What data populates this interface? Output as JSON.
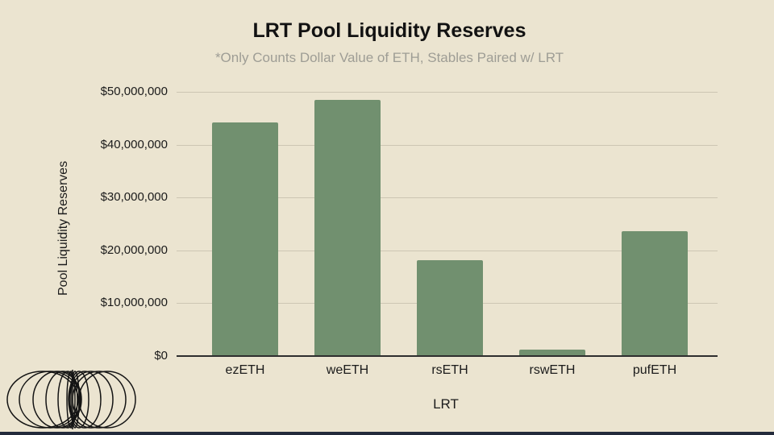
{
  "page": {
    "background_color": "#ebe4d0",
    "footer_bar_color": "#232a3b"
  },
  "chart_data": {
    "type": "bar",
    "title": "LRT Pool Liquidity Reserves",
    "subtitle": "*Only Counts Dollar Value of ETH, Stables Paired w/ LRT",
    "xlabel": "LRT",
    "ylabel": "Pool Liquidity Reserves",
    "categories": [
      "ezETH",
      "weETH",
      "rsETH",
      "rswETH",
      "pufETH"
    ],
    "values": [
      44200000,
      48500000,
      18200000,
      1200000,
      23600000
    ],
    "ylim": [
      0,
      50000000
    ],
    "ytick_interval": 10000000,
    "ytick_labels": [
      "$0",
      "$10,000,000",
      "$20,000,000",
      "$30,000,000",
      "$40,000,000",
      "$50,000,000"
    ],
    "grid": true,
    "legend": "none",
    "bar_color": "#71906f",
    "grid_color": "#cdc6b3",
    "title_color": "#121212",
    "subtitle_color": "#9e9d95"
  },
  "logo": {
    "name": "coil-spring-logo"
  }
}
